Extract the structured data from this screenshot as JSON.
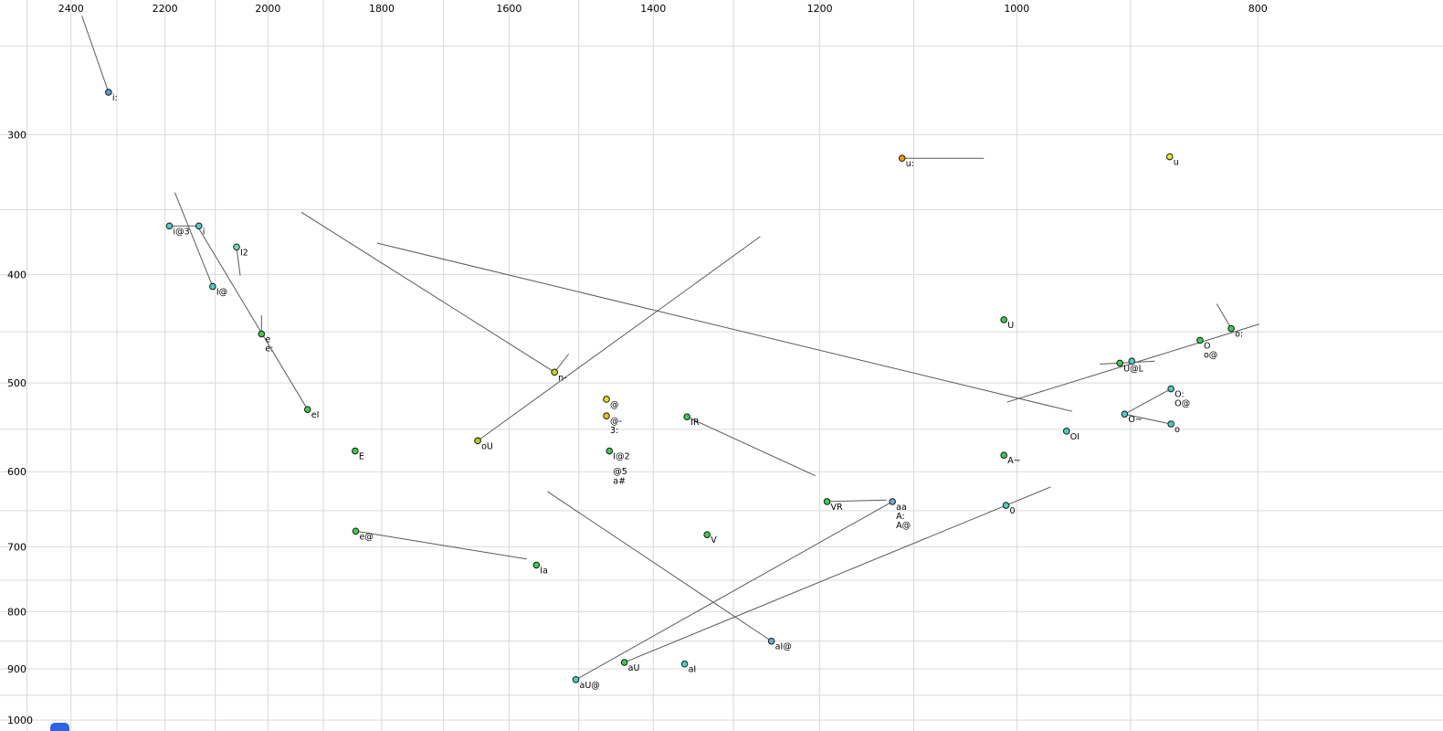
{
  "ui": {
    "bottom_left_artifact_color": "#2e63e8"
  },
  "chart_data": {
    "type": "scatter",
    "title": "",
    "description": "Vowel formant plot (SAMPA labels), F2 on reversed log x-axis, F1 on log y-axis, grey diphthong trajectory lines",
    "x_axis": {
      "scale": "log",
      "reversed": true,
      "view_min": 674,
      "view_max": 2563,
      "tick_labels": [
        2400,
        2200,
        2000,
        1800,
        1600,
        1400,
        1200,
        1000,
        800
      ],
      "grid_min": 800,
      "grid_max": 2500,
      "grid_step": 100
    },
    "y_axis": {
      "scale": "log",
      "reversed": false,
      "view_min": 227.5,
      "view_max": 1022.5,
      "tick_labels": [
        300,
        400,
        500,
        600,
        700,
        800,
        900,
        1000
      ],
      "grid_min": 250,
      "grid_max": 1000,
      "grid_step": 50
    },
    "colors": {
      "background": "#ffffff",
      "grid": "#d9d9d9",
      "line": "#5a5a5a",
      "text": "#000000",
      "marker_stroke": "#1a1a1a"
    },
    "points": [
      {
        "label": "i:",
        "f2": 2318,
        "f1": 275,
        "color": "#5b9bd5"
      },
      {
        "label": "i@3",
        "f2": 2191,
        "f1": 362,
        "color": "#49cfc4"
      },
      {
        "label": "i",
        "f2": 2132,
        "f1": 362,
        "color": "#49cfc4"
      },
      {
        "label": "I2",
        "f2": 2059,
        "f1": 378,
        "color": "#6fdfb8"
      },
      {
        "label": "I@",
        "f2": 2105,
        "f1": 410,
        "color": "#49cfc4"
      },
      {
        "label": "e",
        "sublabels": [
          "e:"
        ],
        "f2": 2012,
        "f1": 452,
        "color": "#3ecb4e"
      },
      {
        "label": "eI",
        "f2": 1928,
        "f1": 528,
        "color": "#3ecb4e"
      },
      {
        "label": "E",
        "f2": 1845,
        "f1": 575,
        "color": "#3ecb4e"
      },
      {
        "label": "e@",
        "f2": 1844,
        "f1": 678,
        "color": "#3ecb4e"
      },
      {
        "label": "Ia",
        "f2": 1560,
        "f1": 727,
        "color": "#3ecb4e"
      },
      {
        "label": "oU",
        "f2": 1647,
        "f1": 563,
        "color": "#a9d414"
      },
      {
        "label": "n-",
        "f2": 1534,
        "f1": 489,
        "color": "#c6d90f"
      },
      {
        "label": "@",
        "f2": 1462,
        "f1": 517,
        "color": "#e3e02a"
      },
      {
        "label": "@-",
        "sublabels": [
          "3:"
        ],
        "f2": 1462,
        "f1": 535,
        "color": "#f0c419"
      },
      {
        "label": "I@2",
        "f2": 1458,
        "f1": 575,
        "color": "#3ecb4e"
      },
      {
        "label": "@5",
        "f2": 1458,
        "f1": 593,
        "marker": false
      },
      {
        "label": "a#",
        "f2": 1458,
        "f1": 605,
        "marker": false
      },
      {
        "label": "IR",
        "f2": 1357,
        "f1": 536,
        "color": "#3ecb4e"
      },
      {
        "label": "V",
        "f2": 1332,
        "f1": 683,
        "color": "#3ecb4e"
      },
      {
        "label": "VR",
        "f2": 1192,
        "f1": 638,
        "color": "#3ecb4e"
      },
      {
        "label": "aa",
        "sublabels": [
          "A:",
          "A@"
        ],
        "f2": 1122,
        "f1": 638,
        "color": "#74a7d8"
      },
      {
        "label": "aI@",
        "f2": 1255,
        "f1": 850,
        "color": "#74a7d8"
      },
      {
        "label": "aU",
        "f2": 1438,
        "f1": 888,
        "color": "#3ecb4e"
      },
      {
        "label": "aI",
        "f2": 1360,
        "f1": 891,
        "color": "#49cfc4"
      },
      {
        "label": "aU@",
        "f2": 1504,
        "f1": 920,
        "color": "#49cfc4"
      },
      {
        "label": "u:",
        "f2": 1112,
        "f1": 315,
        "color": "#f59b00"
      },
      {
        "label": "u",
        "f2": 868,
        "f1": 314,
        "color": "#f0e62e"
      },
      {
        "label": "U",
        "f2": 1012,
        "f1": 439,
        "color": "#3ecb4e"
      },
      {
        "label": "O",
        "sublabels": [
          "o@"
        ],
        "f2": 844,
        "f1": 458,
        "color": "#3ecb4e"
      },
      {
        "label": "o:",
        "f2": 820,
        "f1": 447,
        "color": "#3ecb4e"
      },
      {
        "label": "U@L",
        "f2": 909,
        "f1": 480,
        "color": "#3ecb4e"
      },
      {
        "label": "",
        "f2": 899,
        "f1": 478,
        "color": "#49cfc4"
      },
      {
        "label": "O:",
        "sublabels": [
          "O@"
        ],
        "f2": 867,
        "f1": 506,
        "color": "#49cfc4"
      },
      {
        "label": "O~",
        "f2": 905,
        "f1": 533,
        "color": "#49cfc4"
      },
      {
        "label": "o",
        "f2": 867,
        "f1": 544,
        "color": "#49cfc4"
      },
      {
        "label": "OI",
        "f2": 955,
        "f1": 552,
        "color": "#49cfc4"
      },
      {
        "label": "A~",
        "f2": 1012,
        "f1": 580,
        "color": "#3ecb4e"
      },
      {
        "label": "0",
        "f2": 1010,
        "f1": 643,
        "color": "#49cfc4"
      }
    ],
    "segments": [
      [
        2376,
        235,
        2318,
        275
      ],
      [
        2191,
        362,
        2132,
        362
      ],
      [
        2059,
        378,
        2052,
        401
      ],
      [
        2012,
        435,
        2012,
        452
      ],
      [
        1928,
        528,
        2132,
        364
      ],
      [
        2180,
        338,
        2105,
        410
      ],
      [
        1808,
        375,
        950,
        530
      ],
      [
        1939,
        352,
        1534,
        489
      ],
      [
        1534,
        489,
        1514,
        471
      ],
      [
        1647,
        563,
        1268,
        370
      ],
      [
        1844,
        678,
        1574,
        718
      ],
      [
        1357,
        536,
        1205,
        605
      ],
      [
        1192,
        638,
        1128,
        636
      ],
      [
        1544,
        625,
        1255,
        850
      ],
      [
        1504,
        920,
        1122,
        638
      ],
      [
        1438,
        888,
        1010,
        643
      ],
      [
        1010,
        643,
        969,
        619
      ],
      [
        1112,
        315,
        1031,
        315
      ],
      [
        831,
        425,
        820,
        447
      ],
      [
        1009,
        520,
        799,
        443
      ],
      [
        926,
        481,
        880,
        478
      ],
      [
        867,
        506,
        905,
        533
      ],
      [
        905,
        533,
        867,
        544
      ]
    ]
  }
}
